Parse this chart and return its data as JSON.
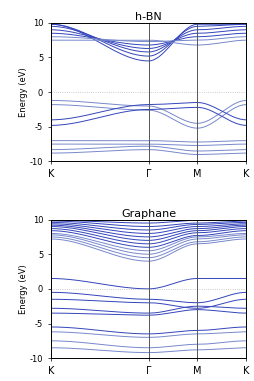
{
  "title_top": "h-BN",
  "title_bottom": "Graphane",
  "ylabel": "Energy (eV)",
  "ylim": [
    -10,
    10
  ],
  "yticks": [
    -10,
    -5,
    0,
    5,
    10
  ],
  "xtick_pos": [
    0.0,
    0.5,
    0.75,
    1.0
  ],
  "xticklabels": [
    "K",
    "Γ",
    "M",
    "K"
  ],
  "vlines": [
    0.5,
    0.75
  ],
  "line_color": "#3344bb",
  "line_color2": "#7788cc",
  "hline_color": "#bbbbbb",
  "background": "#ffffff",
  "figsize": [
    2.54,
    3.81
  ],
  "dpi": 100
}
